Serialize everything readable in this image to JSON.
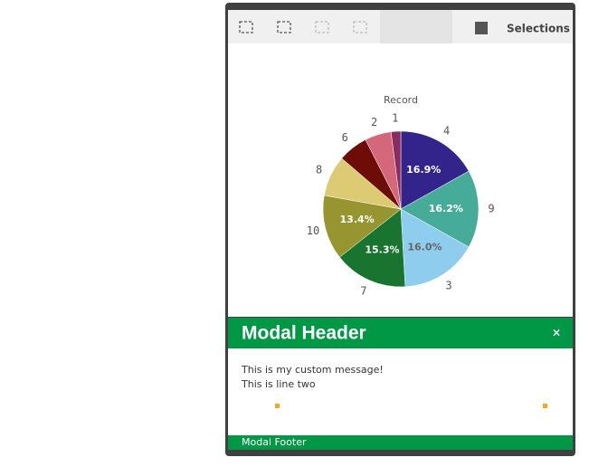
{
  "toolbar": {
    "selections": "Selections"
  },
  "chart_data": {
    "type": "pie",
    "title": "Record",
    "categories": [
      "4",
      "9",
      "3",
      "7",
      "10",
      "8",
      "6",
      "2",
      "1"
    ],
    "values": [
      16.9,
      16.2,
      16.0,
      15.3,
      13.4,
      8.5,
      6.2,
      5.5,
      2.0
    ],
    "value_labels": [
      "16.9%",
      "16.2%",
      "16.0%",
      "15.3%",
      "13.4%",
      null,
      null,
      null,
      null
    ],
    "colors": [
      "#33248b",
      "#47ab9a",
      "#8ecdee",
      "#19742f",
      "#979530",
      "#dccb72",
      "#6e0d07",
      "#d4687a",
      "#8c2b5f"
    ]
  },
  "modal": {
    "header": "Modal Header",
    "close": "×",
    "lines": [
      "This is my custom message!",
      "This is line two"
    ],
    "footer": "Modal Footer"
  }
}
